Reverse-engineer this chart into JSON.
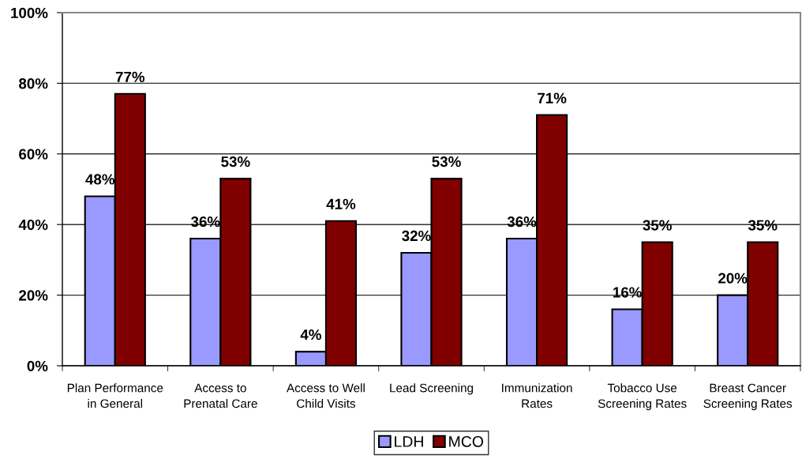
{
  "chart_data": {
    "type": "bar",
    "categories": [
      "Plan Performance\nin General",
      "Access to\nPrenatal Care",
      "Access to Well\nChild Visits",
      "Lead Screening",
      "Immunization\nRates",
      "Tobacco Use\nScreening Rates",
      "Breast Cancer\nScreening Rates"
    ],
    "series": [
      {
        "name": "LDH",
        "color": "#9999ff",
        "values": [
          48,
          36,
          4,
          32,
          36,
          16,
          20
        ],
        "value_labels": [
          "48%",
          "36%",
          "4%",
          "32%",
          "36%",
          "16%",
          "20%"
        ]
      },
      {
        "name": "MCO",
        "color": "#800000",
        "values": [
          77,
          53,
          41,
          53,
          71,
          35,
          35
        ],
        "value_labels": [
          "77%",
          "53%",
          "41%",
          "53%",
          "71%",
          "35%",
          "35%"
        ]
      }
    ],
    "ylim": [
      0,
      100
    ],
    "yticks": [
      {
        "value": 0,
        "label": "0%"
      },
      {
        "value": 20,
        "label": "20%"
      },
      {
        "value": 40,
        "label": "40%"
      },
      {
        "value": 60,
        "label": "60%"
      },
      {
        "value": 80,
        "label": "80%"
      },
      {
        "value": 100,
        "label": "100%"
      }
    ],
    "grid": "y",
    "legend": "bottom"
  }
}
